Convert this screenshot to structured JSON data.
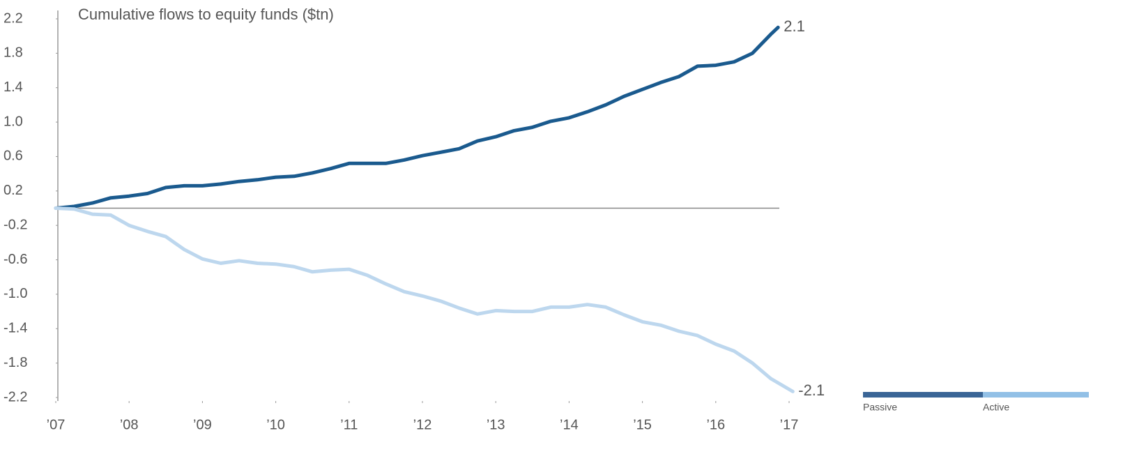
{
  "chart_data": {
    "type": "line",
    "title": "Cumulative flows to equity funds ($tn)",
    "ylim": [
      -2.2,
      2.2
    ],
    "yticks": [
      2.2,
      1.8,
      1.4,
      {
        "value": 1,
        "label": "1.0"
      },
      0.6,
      0.2,
      -0.2,
      -0.6,
      {
        "value": -1,
        "label": "-1.0"
      },
      -1.4,
      -1.8,
      -2.2
    ],
    "xlim": [
      2007,
      2017
    ],
    "xticks": [
      {
        "value": 2007,
        "label": "’07"
      },
      {
        "value": 2008,
        "label": "’08"
      },
      {
        "value": 2009,
        "label": "’09"
      },
      {
        "value": 2010,
        "label": "’10"
      },
      {
        "value": 2011,
        "label": "’11"
      },
      {
        "value": 2012,
        "label": "’12"
      },
      {
        "value": 2013,
        "label": "’13"
      },
      {
        "value": 2014,
        "label": "’14"
      },
      {
        "value": 2015,
        "label": "’15"
      },
      {
        "value": 2016,
        "label": "’16"
      },
      {
        "value": 2017,
        "label": "’17"
      }
    ],
    "grid": false,
    "legend": "bottom-right",
    "series": [
      {
        "name": "Passive",
        "color": "#1a5a8e",
        "legend_color": "#3a6596",
        "end_label": "2.1",
        "x": [
          2007,
          2007.25,
          2007.5,
          2007.75,
          2008,
          2008.25,
          2008.5,
          2008.75,
          2009,
          2009.25,
          2009.5,
          2009.75,
          2010,
          2010.25,
          2010.5,
          2010.75,
          2011,
          2011.25,
          2011.5,
          2011.75,
          2012,
          2012.25,
          2012.5,
          2012.75,
          2013,
          2013.25,
          2013.5,
          2013.75,
          2014,
          2014.25,
          2014.5,
          2014.75,
          2015,
          2015.25,
          2015.5,
          2015.75,
          2016,
          2016.25,
          2016.5,
          2016.75,
          2016.85
        ],
        "values": [
          0,
          0.02,
          0.06,
          0.12,
          0.14,
          0.17,
          0.24,
          0.26,
          0.26,
          0.28,
          0.31,
          0.33,
          0.36,
          0.37,
          0.41,
          0.46,
          0.52,
          0.52,
          0.52,
          0.56,
          0.61,
          0.65,
          0.69,
          0.78,
          0.83,
          0.9,
          0.94,
          1.01,
          1.05,
          1.12,
          1.2,
          1.3,
          1.38,
          1.46,
          1.53,
          1.65,
          1.66,
          1.7,
          1.8,
          2.02,
          2.1
        ]
      },
      {
        "name": "Active",
        "color": "#bdd7ee",
        "legend_color": "#92c0e6",
        "end_label": "-2.1",
        "x": [
          2007,
          2007.25,
          2007.5,
          2007.75,
          2008,
          2008.25,
          2008.5,
          2008.75,
          2009,
          2009.25,
          2009.5,
          2009.75,
          2010,
          2010.25,
          2010.5,
          2010.75,
          2011,
          2011.25,
          2011.5,
          2011.75,
          2012,
          2012.25,
          2012.5,
          2012.75,
          2013,
          2013.25,
          2013.5,
          2013.75,
          2014,
          2014.25,
          2014.5,
          2014.75,
          2015,
          2015.25,
          2015.5,
          2015.75,
          2016,
          2016.25,
          2016.5,
          2016.75,
          2017.05
        ],
        "values": [
          0,
          -0.01,
          -0.07,
          -0.08,
          -0.2,
          -0.27,
          -0.33,
          -0.48,
          -0.59,
          -0.64,
          -0.61,
          -0.64,
          -0.65,
          -0.68,
          -0.74,
          -0.72,
          -0.71,
          -0.78,
          -0.88,
          -0.97,
          -1.02,
          -1.08,
          -1.16,
          -1.23,
          -1.19,
          -1.2,
          -1.2,
          -1.15,
          -1.15,
          -1.12,
          -1.15,
          -1.24,
          -1.32,
          -1.36,
          -1.43,
          -1.48,
          -1.58,
          -1.66,
          -1.8,
          -1.98,
          -2.13
        ]
      }
    ]
  }
}
